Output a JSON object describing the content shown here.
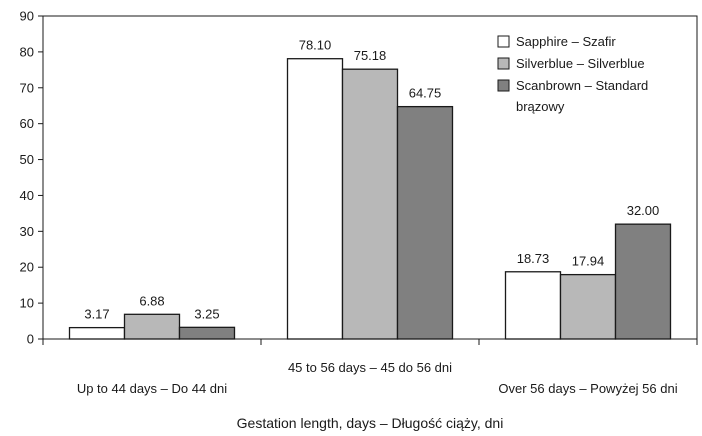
{
  "chart_data": {
    "type": "bar",
    "categories": [
      "Up to 44 days – Do 44 dni",
      "45 to 56 days – 45 do 56 dni",
      "Over 56 days – Powyżej 56 dni"
    ],
    "series": [
      {
        "name": "Sapphire – Szafir",
        "values": [
          3.17,
          78.1,
          18.73
        ],
        "labels": [
          "3.17",
          "78.10",
          "18.73"
        ],
        "color": "#ffffff"
      },
      {
        "name": "Silverblue – Silverblue",
        "values": [
          6.88,
          75.18,
          17.94
        ],
        "labels": [
          "6.88",
          "75.18",
          "17.94"
        ],
        "color": "#b8b8b8"
      },
      {
        "name": "Scanbrown – Standard brązowy",
        "values": [
          3.25,
          64.75,
          32.0
        ],
        "labels": [
          "3.25",
          "64.75",
          "32.00"
        ],
        "color": "#808080"
      }
    ],
    "xlabel": "Gestation length, days – Długość ciąży, dni",
    "ylabel": "",
    "ylim": [
      0,
      90
    ],
    "yticks": [
      0,
      10,
      20,
      30,
      40,
      50,
      60,
      70,
      80,
      90
    ],
    "grid": false,
    "legend": "top-right"
  }
}
